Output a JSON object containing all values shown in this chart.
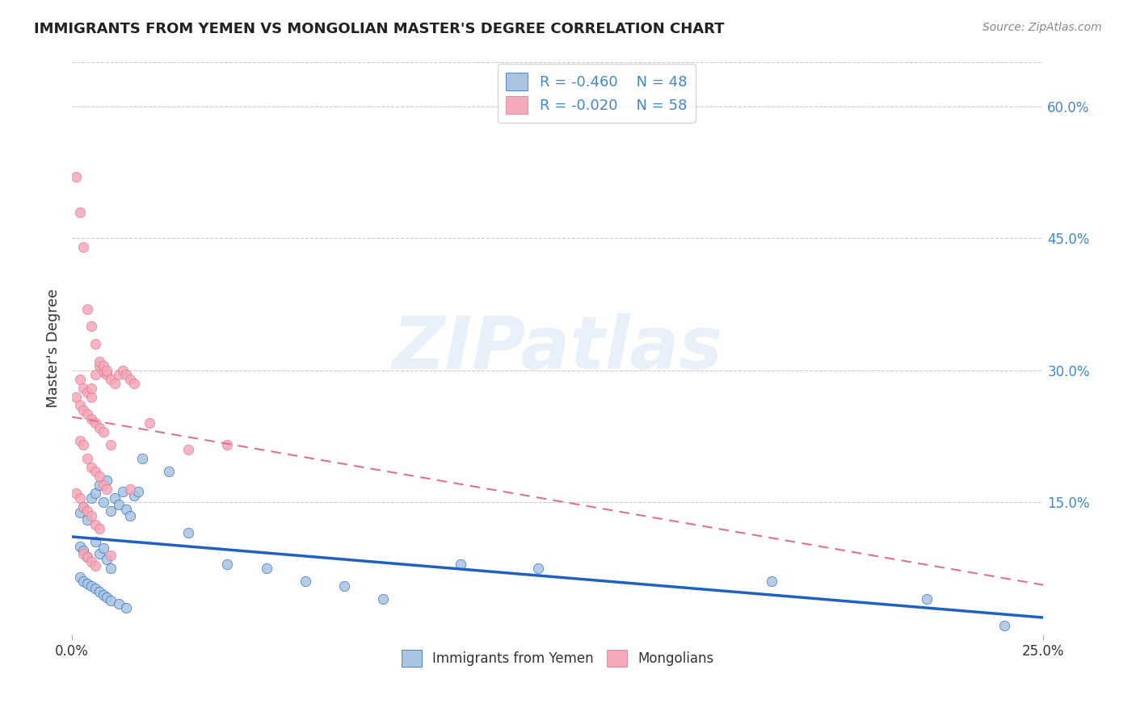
{
  "title": "IMMIGRANTS FROM YEMEN VS MONGOLIAN MASTER'S DEGREE CORRELATION CHART",
  "source": "Source: ZipAtlas.com",
  "ylabel": "Master's Degree",
  "right_yticks": [
    "60.0%",
    "45.0%",
    "30.0%",
    "15.0%"
  ],
  "right_ytick_vals": [
    0.6,
    0.45,
    0.3,
    0.15
  ],
  "legend_r1": "-0.460",
  "legend_n1": "48",
  "legend_r2": "-0.020",
  "legend_n2": "58",
  "color_blue": "#a8c4e0",
  "color_pink": "#f4a8b8",
  "color_blue_line": "#2060c0",
  "color_pink_line": "#e07090",
  "xlim": [
    0.0,
    0.25
  ],
  "ylim": [
    0.0,
    0.65
  ],
  "blue_scatter_x": [
    0.002,
    0.003,
    0.004,
    0.005,
    0.006,
    0.007,
    0.008,
    0.009,
    0.01,
    0.011,
    0.012,
    0.013,
    0.014,
    0.015,
    0.016,
    0.017,
    0.002,
    0.003,
    0.004,
    0.006,
    0.007,
    0.008,
    0.009,
    0.01,
    0.002,
    0.003,
    0.004,
    0.005,
    0.006,
    0.007,
    0.008,
    0.009,
    0.01,
    0.012,
    0.014,
    0.018,
    0.025,
    0.03,
    0.04,
    0.05,
    0.06,
    0.07,
    0.08,
    0.1,
    0.12,
    0.18,
    0.22,
    0.24
  ],
  "blue_scatter_y": [
    0.138,
    0.145,
    0.13,
    0.155,
    0.16,
    0.17,
    0.15,
    0.175,
    0.14,
    0.155,
    0.148,
    0.162,
    0.142,
    0.135,
    0.158,
    0.162,
    0.1,
    0.095,
    0.088,
    0.105,
    0.092,
    0.098,
    0.085,
    0.075,
    0.065,
    0.06,
    0.058,
    0.055,
    0.052,
    0.048,
    0.045,
    0.042,
    0.038,
    0.035,
    0.03,
    0.2,
    0.185,
    0.115,
    0.08,
    0.075,
    0.06,
    0.055,
    0.04,
    0.08,
    0.075,
    0.06,
    0.04,
    0.01
  ],
  "pink_scatter_x": [
    0.001,
    0.002,
    0.003,
    0.004,
    0.005,
    0.006,
    0.007,
    0.008,
    0.009,
    0.01,
    0.011,
    0.012,
    0.013,
    0.014,
    0.015,
    0.016,
    0.002,
    0.003,
    0.004,
    0.005,
    0.006,
    0.007,
    0.008,
    0.009,
    0.001,
    0.002,
    0.003,
    0.004,
    0.005,
    0.006,
    0.007,
    0.008,
    0.002,
    0.003,
    0.004,
    0.005,
    0.006,
    0.007,
    0.008,
    0.009,
    0.001,
    0.002,
    0.003,
    0.004,
    0.005,
    0.006,
    0.007,
    0.003,
    0.004,
    0.005,
    0.006,
    0.01,
    0.015,
    0.02,
    0.03,
    0.04,
    0.005,
    0.01
  ],
  "pink_scatter_y": [
    0.52,
    0.48,
    0.44,
    0.37,
    0.35,
    0.33,
    0.305,
    0.298,
    0.295,
    0.29,
    0.285,
    0.295,
    0.3,
    0.295,
    0.29,
    0.285,
    0.29,
    0.28,
    0.275,
    0.27,
    0.295,
    0.31,
    0.305,
    0.3,
    0.27,
    0.26,
    0.255,
    0.25,
    0.245,
    0.24,
    0.235,
    0.23,
    0.22,
    0.215,
    0.2,
    0.19,
    0.185,
    0.18,
    0.17,
    0.165,
    0.16,
    0.155,
    0.145,
    0.14,
    0.135,
    0.125,
    0.12,
    0.092,
    0.088,
    0.082,
    0.078,
    0.215,
    0.165,
    0.24,
    0.21,
    0.215,
    0.28,
    0.09
  ]
}
